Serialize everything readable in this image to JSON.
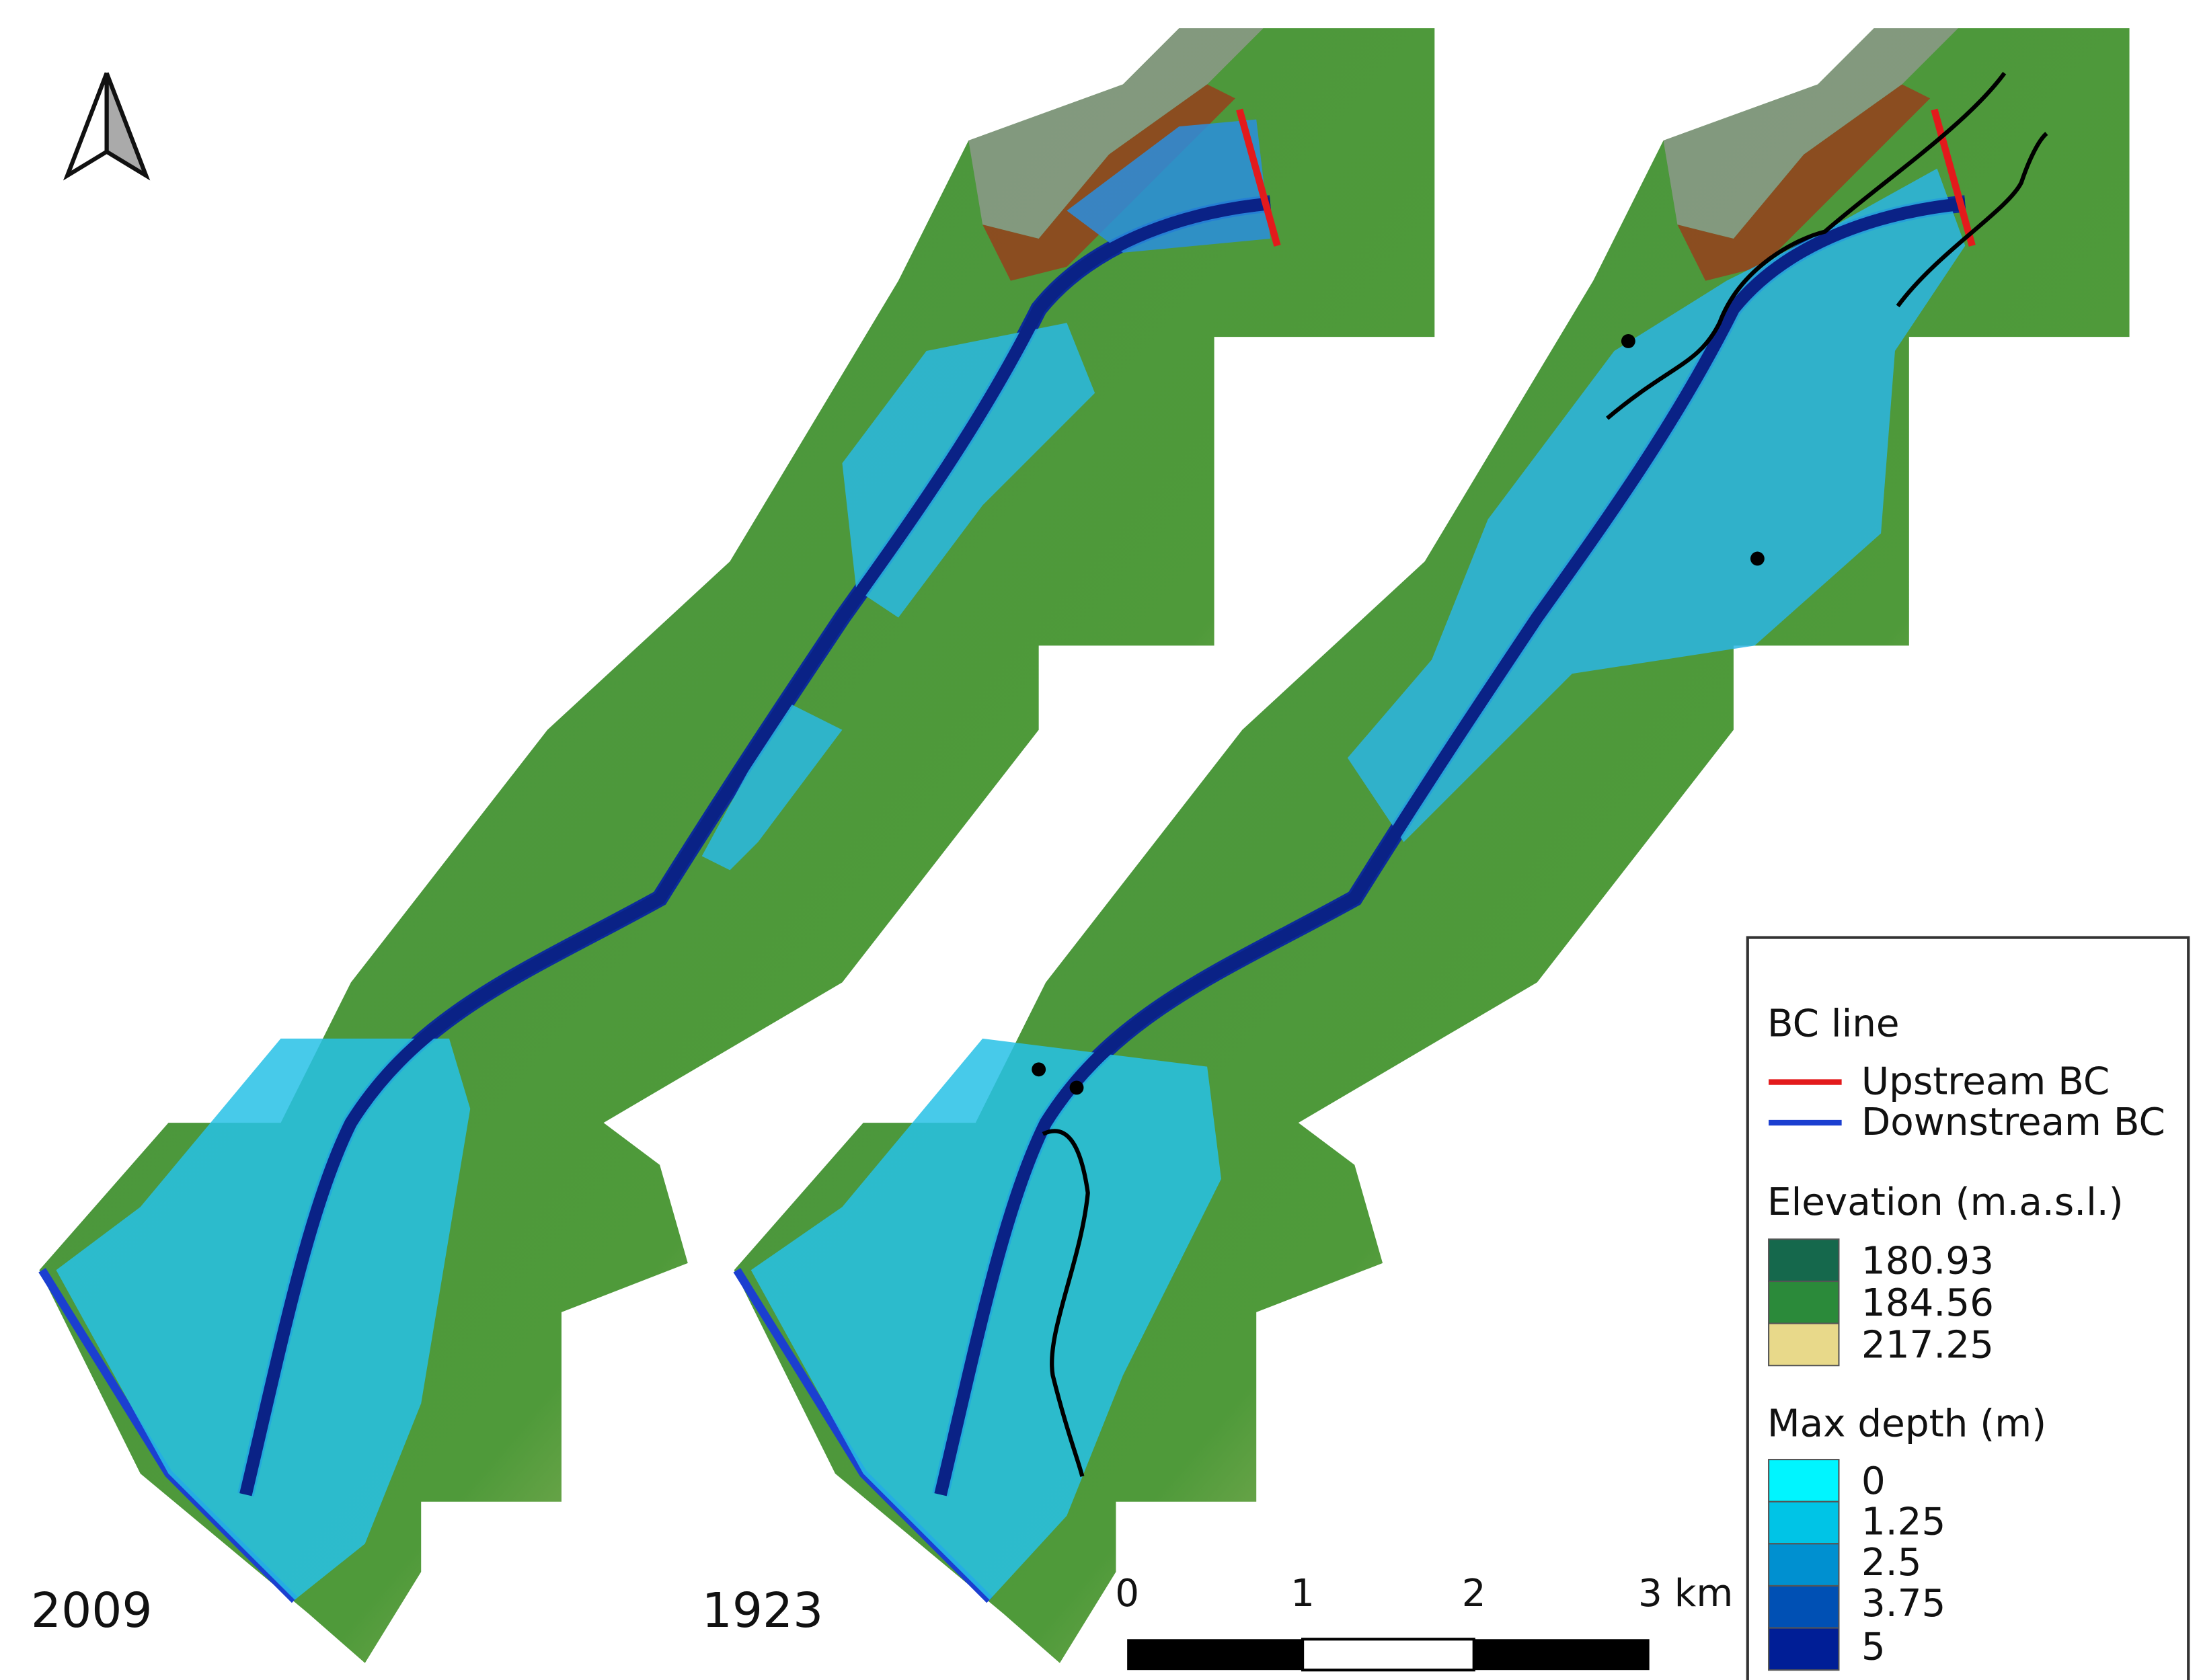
{
  "maps": [
    {
      "year_label": "2009"
    },
    {
      "year_label": "1923"
    }
  ],
  "scale_bar": {
    "labels": [
      "0",
      "1",
      "2",
      "3 km"
    ]
  },
  "legend": {
    "bc_title": "BC line",
    "bc_items": [
      "Upstream BC",
      "Downstream BC"
    ],
    "elevation_title": "Elevation (m.a.s.l.)",
    "elevation_items": [
      180.93,
      184.56,
      217.25
    ],
    "depth_title": "Max depth (m)",
    "depth_items": [
      0,
      1.25,
      2.5,
      3.75,
      5
    ]
  }
}
